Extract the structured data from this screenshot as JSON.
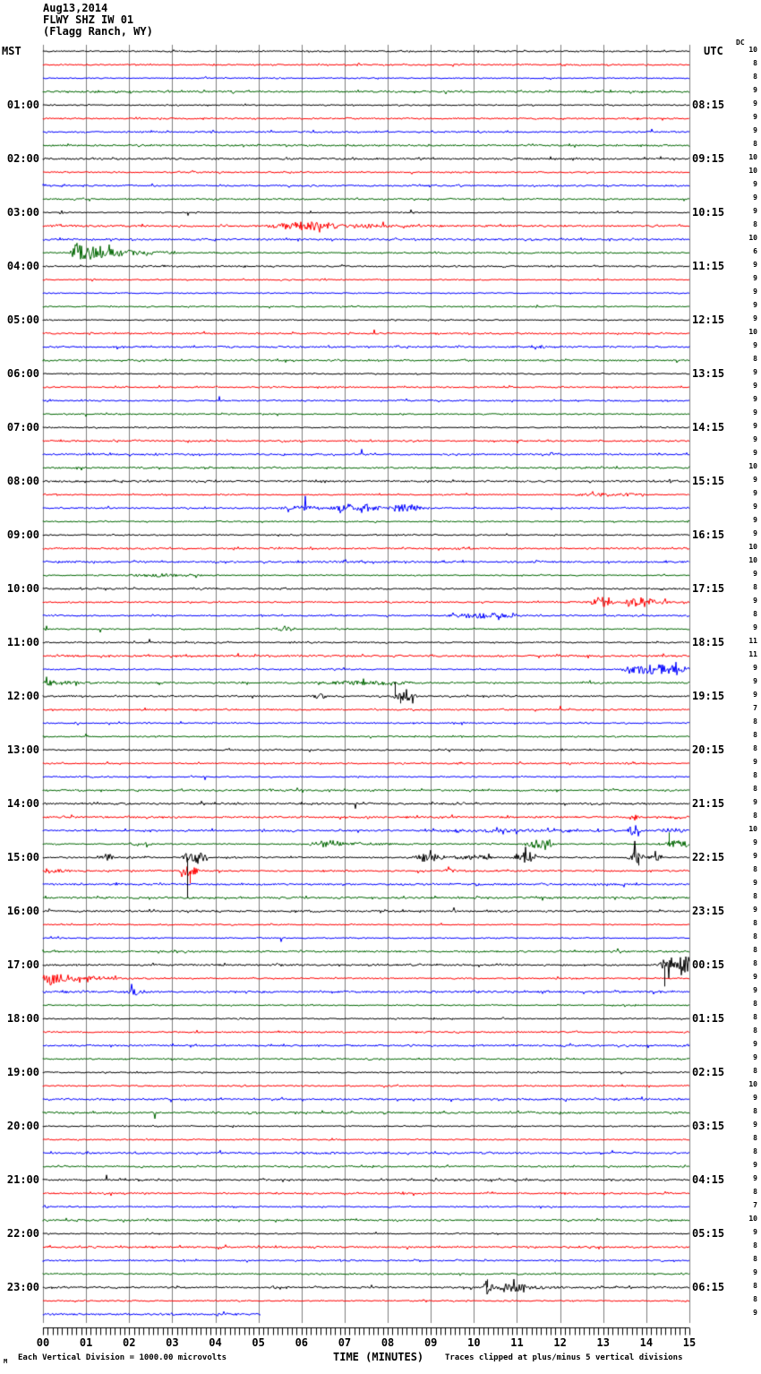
{
  "title": {
    "date": "Aug13,2014",
    "station": "FLWY SHZ IW 01",
    "location": "(Flagg Ranch, WY)"
  },
  "axes": {
    "left_label": "MST",
    "right_label": "UTC",
    "dc_label": "DC",
    "xlabel": "TIME (MINUTES)",
    "left_hours": [
      "01:00",
      "02:00",
      "03:00",
      "04:00",
      "05:00",
      "06:00",
      "07:00",
      "08:00",
      "09:00",
      "10:00",
      "11:00",
      "12:00",
      "13:00",
      "14:00",
      "15:00",
      "16:00",
      "17:00",
      "18:00",
      "19:00",
      "20:00",
      "21:00",
      "22:00",
      "23:00"
    ],
    "right_utc": [
      "08:15",
      "09:15",
      "10:15",
      "11:15",
      "12:15",
      "13:15",
      "14:15",
      "15:15",
      "16:15",
      "17:15",
      "18:15",
      "19:15",
      "20:15",
      "21:15",
      "22:15",
      "23:15",
      "00:15",
      "01:15",
      "02:15",
      "03:15",
      "04:15",
      "05:15",
      "06:15"
    ],
    "dc_values": [
      10,
      8,
      8,
      9,
      9,
      9,
      9,
      8,
      10,
      10,
      9,
      9,
      9,
      8,
      10,
      6,
      9,
      9,
      9,
      9,
      9,
      10,
      9,
      8,
      9,
      9,
      9,
      9,
      9,
      9,
      9,
      10,
      9,
      9,
      9,
      9,
      9,
      10,
      10,
      9,
      8,
      9,
      8,
      9,
      11,
      11,
      9,
      9,
      9,
      7,
      8,
      8,
      8,
      9,
      8,
      8,
      9,
      8,
      10,
      9,
      9,
      8,
      9,
      8,
      9,
      8,
      8,
      8,
      8,
      9,
      9,
      8,
      8,
      8,
      9,
      9,
      8,
      10,
      9,
      8,
      9,
      8,
      8,
      9,
      9,
      8,
      7,
      10,
      9,
      8,
      8,
      9,
      8,
      8,
      9
    ],
    "minute_labels": [
      "00",
      "01",
      "02",
      "03",
      "04",
      "05",
      "06",
      "07",
      "08",
      "09",
      "10",
      "11",
      "12",
      "13",
      "14",
      "15"
    ]
  },
  "footer": {
    "left_mark": "M",
    "scale_note": "Each Vertical Division = 1000.00 microvolts",
    "clip_note": "Traces clipped at plus/minus 5 vertical divisions"
  },
  "colors": {
    "trace_cycle": [
      "#000000",
      "#ff0000",
      "#0000ff",
      "#006600"
    ],
    "grid": "#7f7f7f",
    "background": "#ffffff"
  },
  "chart_data": {
    "type": "line",
    "title": "FLWY SHZ IW 01 (Flagg Ranch, WY) helicorder record, Aug13,2014",
    "xlabel": "TIME (MINUTES)",
    "x_range": [
      0,
      15
    ],
    "rows": 95,
    "row_start_mst": "00:00",
    "row_interval_min": 15,
    "minutes_per_row": 15,
    "last_row_partial_end_min": 5.05,
    "vertical_division_microvolts": 1000.0,
    "clip_divisions": 5,
    "noise_seed": 20140813,
    "events": [
      {
        "row": 13,
        "shape": "burst",
        "start": 5.1,
        "end": 7.2,
        "amp": 4
      },
      {
        "row": 13,
        "shape": "decay",
        "start": 7.2,
        "end": 9.6,
        "amp": 2
      },
      {
        "row": 15,
        "shape": "decay",
        "start": 0.62,
        "end": 3.4,
        "amp": 11
      },
      {
        "row": 33,
        "shape": "burst",
        "start": 12.2,
        "end": 14.1,
        "amp": 1.6
      },
      {
        "row": 34,
        "shape": "burst",
        "start": 5.4,
        "end": 6.6,
        "amp": 2
      },
      {
        "row": 34,
        "shape": "burst",
        "start": 6.6,
        "end": 8.0,
        "amp": 4.5
      },
      {
        "row": 34,
        "shape": "burst",
        "start": 7.9,
        "end": 8.9,
        "amp": 4
      },
      {
        "row": 39,
        "shape": "burst",
        "start": 1.8,
        "end": 3.9,
        "amp": 1.4
      },
      {
        "row": 41,
        "shape": "burst",
        "start": 12.6,
        "end": 13.3,
        "amp": 5
      },
      {
        "row": 41,
        "shape": "burst",
        "start": 13.4,
        "end": 14.3,
        "amp": 5
      },
      {
        "row": 41,
        "shape": "decay",
        "start": 14.3,
        "end": 15,
        "amp": 2
      },
      {
        "row": 42,
        "shape": "burst",
        "start": 9.3,
        "end": 11.2,
        "amp": 2.5
      },
      {
        "row": 43,
        "shape": "burst",
        "start": 5.2,
        "end": 6.0,
        "amp": 2
      },
      {
        "row": 46,
        "shape": "burst",
        "start": 13.3,
        "end": 15.2,
        "amp": 5
      },
      {
        "row": 47,
        "shape": "decay",
        "start": 0,
        "end": 1.5,
        "amp": 3
      },
      {
        "row": 47,
        "shape": "burst",
        "start": 6.3,
        "end": 8.8,
        "amp": 1.8
      },
      {
        "row": 48,
        "shape": "burst",
        "start": 6.25,
        "end": 6.6,
        "amp": 3
      },
      {
        "row": 48,
        "shape": "burst",
        "start": 8.1,
        "end": 8.7,
        "amp": 5
      },
      {
        "row": 57,
        "shape": "spike",
        "start": 13.6,
        "end": 13.9,
        "amp": 4
      },
      {
        "row": 57,
        "shape": "spike",
        "start": 14.5,
        "end": 14.75,
        "amp": 3
      },
      {
        "row": 58,
        "shape": "burst",
        "start": 8.5,
        "end": 13.0,
        "amp": 1.2
      },
      {
        "row": 58,
        "shape": "burst",
        "start": 11.9,
        "end": 12.5,
        "amp": 2
      },
      {
        "row": 58,
        "shape": "spike",
        "start": 13.55,
        "end": 13.9,
        "amp": 6
      },
      {
        "row": 58,
        "shape": "burst",
        "start": 14.1,
        "end": 15.1,
        "amp": 1.8
      },
      {
        "row": 59,
        "shape": "burst",
        "start": 2.0,
        "end": 2.6,
        "amp": 2
      },
      {
        "row": 59,
        "shape": "burst",
        "start": 6.1,
        "end": 7.1,
        "amp": 3.5
      },
      {
        "row": 59,
        "shape": "decay",
        "start": 7.1,
        "end": 9.2,
        "amp": 1.8
      },
      {
        "row": 59,
        "shape": "burst",
        "start": 11.1,
        "end": 11.9,
        "amp": 4.5
      },
      {
        "row": 59,
        "shape": "burst",
        "start": 14.4,
        "end": 15.1,
        "amp": 4
      },
      {
        "row": 60,
        "shape": "burst",
        "start": 1.25,
        "end": 1.7,
        "amp": 3.5
      },
      {
        "row": 60,
        "shape": "burst",
        "start": 3.2,
        "end": 3.85,
        "amp": 7
      },
      {
        "row": 60,
        "shape": "burst",
        "start": 8.55,
        "end": 9.35,
        "amp": 5
      },
      {
        "row": 60,
        "shape": "burst",
        "start": 9.35,
        "end": 10.6,
        "amp": 2
      },
      {
        "row": 60,
        "shape": "burst",
        "start": 10.9,
        "end": 11.6,
        "amp": 5.5
      },
      {
        "row": 60,
        "shape": "spike",
        "start": 13.55,
        "end": 14.0,
        "amp": 9
      },
      {
        "row": 60,
        "shape": "burst",
        "start": 14.0,
        "end": 14.45,
        "amp": 3
      },
      {
        "row": 61,
        "shape": "decay",
        "start": 0,
        "end": 1.2,
        "amp": 2.5
      },
      {
        "row": 61,
        "shape": "burst",
        "start": 3.15,
        "end": 3.65,
        "amp": 5
      },
      {
        "row": 61,
        "shape": "spike",
        "start": 9.3,
        "end": 9.6,
        "amp": 2.5
      },
      {
        "row": 68,
        "shape": "burst",
        "start": 14.25,
        "end": 15.4,
        "amp": 11
      },
      {
        "row": 69,
        "shape": "decay",
        "start": 0,
        "end": 2.6,
        "amp": 7
      },
      {
        "row": 70,
        "shape": "burst",
        "start": 1.85,
        "end": 2.35,
        "amp": 3.5
      },
      {
        "row": 92,
        "shape": "spike",
        "start": 10.2,
        "end": 10.5,
        "amp": 8
      },
      {
        "row": 92,
        "shape": "burst",
        "start": 10.4,
        "end": 11.4,
        "amp": 4
      },
      {
        "row": 92,
        "shape": "decay",
        "start": 11.4,
        "end": 12.4,
        "amp": 1.8
      }
    ],
    "vlines": [
      {
        "row": 60,
        "min": 3.35,
        "len": 45
      },
      {
        "row": 68,
        "min": 14.42,
        "len": 24
      },
      {
        "row": 48,
        "min": 8.17,
        "len": -16
      },
      {
        "row": 48,
        "min": 8.28,
        "len": 8
      },
      {
        "row": 92,
        "min": 10.3,
        "len": -9
      },
      {
        "row": 59,
        "min": 14.52,
        "len": -13
      },
      {
        "row": 60,
        "min": 13.72,
        "len": -11
      },
      {
        "row": 60,
        "min": 13.82,
        "len": 9
      },
      {
        "row": 61,
        "min": 3.4,
        "len": 14
      }
    ]
  }
}
